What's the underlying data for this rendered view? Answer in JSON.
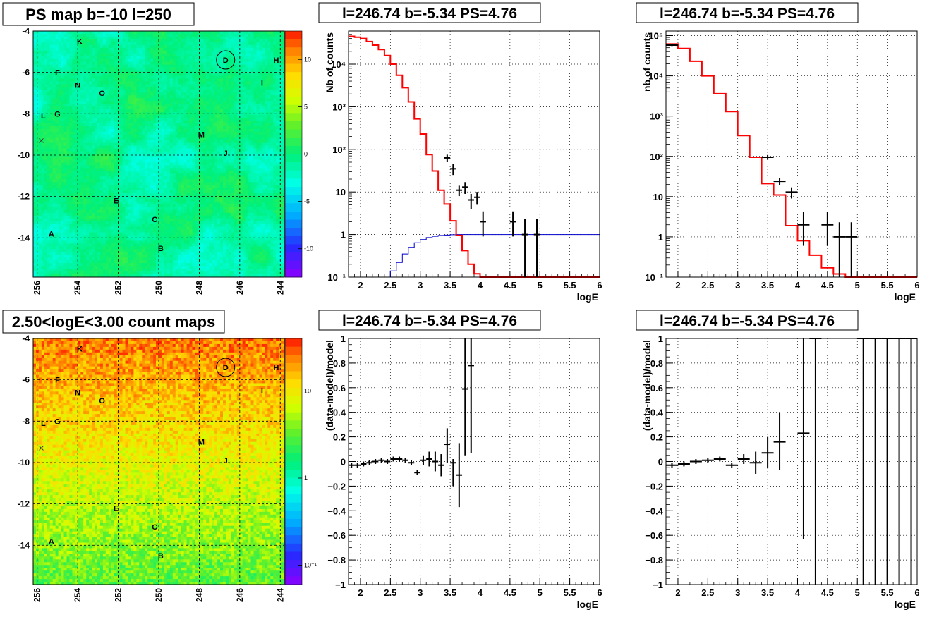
{
  "colors": {
    "model": "#ff0000",
    "background_model": "#0000cc",
    "data": "#000000",
    "grid": "#000000"
  },
  "chart_data": [
    {
      "id": "ps-map",
      "type": "heatmap",
      "title": "PS map b=-10 l=250",
      "x_ticks": [
        "256",
        "254",
        "252",
        "250",
        "248",
        "246",
        "244"
      ],
      "y_ticks": [
        "-4",
        "-6",
        "-8",
        "-10",
        "-12",
        "-14"
      ],
      "xlim": [
        256.2,
        243.8
      ],
      "ylim": [
        -15.9,
        -4.0
      ],
      "colorbar": {
        "scale": "linear",
        "range": [
          -13,
          13
        ],
        "ticks": [
          "10",
          "5",
          "0",
          "-5",
          "-10"
        ],
        "tick_values": [
          10,
          5,
          0,
          -5,
          -10
        ]
      },
      "color_style": "ps",
      "sources": [
        {
          "label": "K",
          "l": 253.9,
          "b": -4.5
        },
        {
          "label": "D",
          "l": 246.7,
          "b": -5.4
        },
        {
          "label": "H",
          "l": 244.2,
          "b": -5.4
        },
        {
          "label": "F",
          "l": 255.0,
          "b": -6.0
        },
        {
          "label": "I",
          "l": 244.9,
          "b": -6.5
        },
        {
          "label": "N",
          "l": 254.0,
          "b": -6.6
        },
        {
          "label": "O",
          "l": 252.8,
          "b": -7.0
        },
        {
          "label": "L",
          "l": 255.7,
          "b": -8.1
        },
        {
          "label": "G",
          "l": 255.0,
          "b": -8.0
        },
        {
          "label": "M",
          "l": 247.9,
          "b": -9.0
        },
        {
          "label": "J",
          "l": 246.7,
          "b": -9.9
        },
        {
          "label": "E",
          "l": 252.1,
          "b": -12.2
        },
        {
          "label": "C",
          "l": 250.2,
          "b": -13.1
        },
        {
          "label": "A",
          "l": 255.3,
          "b": -13.8
        },
        {
          "label": "B",
          "l": 249.9,
          "b": -14.5
        }
      ],
      "circle": {
        "l": 246.7,
        "b": -5.4
      },
      "cross": {
        "l": 255.8,
        "b": -9.3
      }
    },
    {
      "id": "spectrum-left",
      "type": "line",
      "title": "l=246.74 b=-5.34 PS=4.76",
      "xlabel": "logE",
      "ylabel": "Nb of counts",
      "xlim": [
        1.8,
        6.0
      ],
      "ylim": [
        0.1,
        60000
      ],
      "yscale": "log",
      "x_ticks": [
        "2",
        "2.5",
        "3",
        "3.5",
        "4",
        "4.5",
        "5",
        "5.5",
        "6"
      ],
      "x_tick_values": [
        2,
        2.5,
        3,
        3.5,
        4,
        4.5,
        5,
        5.5,
        6
      ],
      "y_ticks": [
        "10⁻¹",
        "1",
        "10",
        "10²",
        "10³",
        "10⁴"
      ],
      "y_tick_values": [
        0.1,
        1,
        10,
        100,
        1000,
        10000
      ],
      "model_step": {
        "edges": [
          1.8,
          1.9,
          2.0,
          2.1,
          2.2,
          2.3,
          2.4,
          2.5,
          2.6,
          2.7,
          2.8,
          2.9,
          3.0,
          3.1,
          3.2,
          3.3,
          3.4,
          3.5,
          3.6,
          3.7,
          3.8,
          3.9,
          4.0,
          4.1,
          4.2,
          4.3,
          4.4,
          4.5,
          4.6,
          4.7,
          4.8,
          4.9,
          5.0,
          6.0
        ],
        "values": [
          45000,
          43000,
          40000,
          34000,
          28000,
          22000,
          16000,
          10000,
          5500,
          2800,
          1300,
          520,
          230,
          75,
          31,
          11,
          5.2,
          2.1,
          0.95,
          0.42,
          0.2,
          0.12,
          0.1,
          0.1,
          0.1,
          0.1,
          0.1,
          0.1,
          0.1,
          0.1,
          0.1,
          0.1,
          0.1
        ]
      },
      "background_step": {
        "edges": [
          1.8,
          2.5,
          2.6,
          2.7,
          2.8,
          2.9,
          3.0,
          3.1,
          3.2,
          3.3,
          3.4,
          3.5,
          3.6,
          3.7,
          3.8,
          3.9,
          4.0,
          6.0
        ],
        "values": [
          0.1,
          0.14,
          0.22,
          0.35,
          0.5,
          0.64,
          0.76,
          0.85,
          0.91,
          0.95,
          0.97,
          0.99,
          1.0,
          1.0,
          1.0,
          1.0,
          1.0
        ]
      },
      "points": [
        {
          "x": 3.45,
          "y": 63,
          "dx": 0.05,
          "ylo": 50,
          "yhi": 75
        },
        {
          "x": 3.55,
          "y": 35,
          "dx": 0.05,
          "ylo": 25,
          "yhi": 45
        },
        {
          "x": 3.65,
          "y": 11,
          "dx": 0.05,
          "ylo": 8,
          "yhi": 14
        },
        {
          "x": 3.75,
          "y": 13,
          "dx": 0.05,
          "ylo": 9,
          "yhi": 17
        },
        {
          "x": 3.85,
          "y": 6.5,
          "dx": 0.05,
          "ylo": 4,
          "yhi": 9
        },
        {
          "x": 3.95,
          "y": 7.5,
          "dx": 0.05,
          "ylo": 5,
          "yhi": 10
        },
        {
          "x": 4.05,
          "y": 2,
          "dx": 0.05,
          "ylo": 0.9,
          "yhi": 3.5
        },
        {
          "x": 4.55,
          "y": 2,
          "dx": 0.05,
          "ylo": 0.9,
          "yhi": 3.5
        },
        {
          "x": 4.75,
          "y": 1,
          "dx": 0.05,
          "ylo": 0.1,
          "yhi": 2.3
        },
        {
          "x": 4.95,
          "y": 1,
          "dx": 0.05,
          "ylo": 0.1,
          "yhi": 2.3
        }
      ]
    },
    {
      "id": "spectrum-right",
      "type": "line",
      "title": "l=246.74 b=-5.34 PS=4.76",
      "xlabel": "logE",
      "ylabel": "nb of counts",
      "xlim": [
        1.8,
        6.0
      ],
      "ylim": [
        0.1,
        130000
      ],
      "yscale": "log",
      "x_ticks": [
        "2",
        "2.5",
        "3",
        "3.5",
        "4",
        "4.5",
        "5",
        "5.5",
        "6"
      ],
      "x_tick_values": [
        2,
        2.5,
        3,
        3.5,
        4,
        4.5,
        5,
        5.5,
        6
      ],
      "y_ticks": [
        "10⁻¹",
        "1",
        "10",
        "10²",
        "10³",
        "10⁴",
        "10⁵"
      ],
      "y_tick_values": [
        0.1,
        1,
        10,
        100,
        1000,
        10000,
        100000
      ],
      "model_step": {
        "edges": [
          1.8,
          2.0,
          2.2,
          2.4,
          2.6,
          2.8,
          3.0,
          3.2,
          3.4,
          3.6,
          3.8,
          4.0,
          4.2,
          4.4,
          4.6,
          4.8,
          6.0
        ],
        "values": [
          62000,
          48000,
          23000,
          10000,
          3600,
          1300,
          330,
          95,
          21,
          11,
          1.9,
          0.8,
          0.35,
          0.17,
          0.12,
          0.1
        ]
      },
      "points": [
        {
          "x": 1.9,
          "y": 58000,
          "dx": 0.1,
          "ylo": 55000,
          "yhi": 61000
        },
        {
          "x": 3.5,
          "y": 95,
          "dx": 0.1,
          "ylo": 82,
          "yhi": 108
        },
        {
          "x": 3.7,
          "y": 24,
          "dx": 0.1,
          "ylo": 19,
          "yhi": 29
        },
        {
          "x": 3.9,
          "y": 13,
          "dx": 0.1,
          "ylo": 9,
          "yhi": 17
        },
        {
          "x": 4.1,
          "y": 2,
          "dx": 0.1,
          "ylo": 0.6,
          "yhi": 4.2
        },
        {
          "x": 4.5,
          "y": 2,
          "dx": 0.1,
          "ylo": 0.6,
          "yhi": 4.2
        },
        {
          "x": 4.7,
          "y": 1,
          "dx": 0.1,
          "ylo": 0.1,
          "yhi": 2.3
        },
        {
          "x": 4.9,
          "y": 1,
          "dx": 0.1,
          "ylo": 0.1,
          "yhi": 2.3
        }
      ]
    },
    {
      "id": "count-map",
      "type": "heatmap",
      "title": "2.50<logE<3.00 count maps",
      "x_ticks": [
        "256",
        "254",
        "252",
        "250",
        "248",
        "246",
        "244"
      ],
      "y_ticks": [
        "-4",
        "-6",
        "-8",
        "-10",
        "-12",
        "-14"
      ],
      "xlim": [
        256.2,
        243.8
      ],
      "ylim": [
        -15.9,
        -4.0
      ],
      "colorbar": {
        "scale": "log",
        "range": [
          0.06,
          40
        ],
        "ticks": [
          "10",
          "1",
          "10⁻¹"
        ],
        "tick_values": [
          10,
          1,
          0.1
        ]
      },
      "color_style": "counts",
      "sources": [
        {
          "label": "K",
          "l": 253.9,
          "b": -4.5
        },
        {
          "label": "D",
          "l": 246.7,
          "b": -5.4
        },
        {
          "label": "H",
          "l": 244.2,
          "b": -5.4
        },
        {
          "label": "F",
          "l": 255.0,
          "b": -6.0
        },
        {
          "label": "I",
          "l": 244.9,
          "b": -6.5
        },
        {
          "label": "N",
          "l": 254.0,
          "b": -6.6
        },
        {
          "label": "O",
          "l": 252.8,
          "b": -7.0
        },
        {
          "label": "L",
          "l": 255.7,
          "b": -8.1
        },
        {
          "label": "G",
          "l": 255.0,
          "b": -8.0
        },
        {
          "label": "M",
          "l": 247.9,
          "b": -9.0
        },
        {
          "label": "J",
          "l": 246.7,
          "b": -9.9
        },
        {
          "label": "E",
          "l": 252.1,
          "b": -12.2
        },
        {
          "label": "C",
          "l": 250.2,
          "b": -13.1
        },
        {
          "label": "A",
          "l": 255.3,
          "b": -13.8
        },
        {
          "label": "B",
          "l": 249.9,
          "b": -14.5
        }
      ],
      "circle": {
        "l": 246.7,
        "b": -5.4
      },
      "cross": {
        "l": 255.8,
        "b": -9.3
      }
    },
    {
      "id": "residual-left",
      "type": "scatter",
      "title": "l=246.74 b=-5.34 PS=4.76",
      "xlabel": "logE",
      "ylabel": "(data-model)/model",
      "xlim": [
        1.8,
        6.0
      ],
      "ylim": [
        -1,
        1
      ],
      "x_ticks": [
        "2",
        "2.5",
        "3",
        "3.5",
        "4",
        "4.5",
        "5",
        "5.5",
        "6"
      ],
      "x_tick_values": [
        2,
        2.5,
        3,
        3.5,
        4,
        4.5,
        5,
        5.5,
        6
      ],
      "y_ticks": [
        "1",
        "0.8",
        "0.6",
        "0.4",
        "0.2",
        "0",
        "−0.2",
        "−0.4",
        "−0.6",
        "−0.8",
        "−1"
      ],
      "y_tick_values": [
        1,
        0.8,
        0.6,
        0.4,
        0.2,
        0,
        -0.2,
        -0.4,
        -0.6,
        -0.8,
        -1
      ],
      "points": [
        {
          "x": 1.85,
          "y": -0.03,
          "dx": 0.05,
          "ylo": -0.05,
          "yhi": -0.01
        },
        {
          "x": 1.95,
          "y": -0.03,
          "dx": 0.05,
          "ylo": -0.05,
          "yhi": -0.01
        },
        {
          "x": 2.05,
          "y": -0.02,
          "dx": 0.05,
          "ylo": -0.04,
          "yhi": 0.0
        },
        {
          "x": 2.15,
          "y": -0.01,
          "dx": 0.05,
          "ylo": -0.03,
          "yhi": 0.01
        },
        {
          "x": 2.25,
          "y": 0.0,
          "dx": 0.05,
          "ylo": -0.02,
          "yhi": 0.02
        },
        {
          "x": 2.35,
          "y": 0.01,
          "dx": 0.05,
          "ylo": -0.01,
          "yhi": 0.03
        },
        {
          "x": 2.45,
          "y": 0.0,
          "dx": 0.05,
          "ylo": -0.02,
          "yhi": 0.02
        },
        {
          "x": 2.55,
          "y": 0.02,
          "dx": 0.05,
          "ylo": 0.0,
          "yhi": 0.04
        },
        {
          "x": 2.65,
          "y": 0.02,
          "dx": 0.05,
          "ylo": 0.0,
          "yhi": 0.04
        },
        {
          "x": 2.75,
          "y": 0.01,
          "dx": 0.05,
          "ylo": -0.01,
          "yhi": 0.03
        },
        {
          "x": 2.85,
          "y": -0.01,
          "dx": 0.05,
          "ylo": -0.03,
          "yhi": 0.01
        },
        {
          "x": 2.95,
          "y": -0.09,
          "dx": 0.05,
          "ylo": -0.11,
          "yhi": -0.07
        },
        {
          "x": 3.05,
          "y": 0.01,
          "dx": 0.05,
          "ylo": -0.03,
          "yhi": 0.05
        },
        {
          "x": 3.15,
          "y": 0.02,
          "dx": 0.05,
          "ylo": -0.04,
          "yhi": 0.08
        },
        {
          "x": 3.25,
          "y": 0.0,
          "dx": 0.05,
          "ylo": -0.08,
          "yhi": 0.08
        },
        {
          "x": 3.35,
          "y": -0.03,
          "dx": 0.05,
          "ylo": -0.12,
          "yhi": 0.06
        },
        {
          "x": 3.45,
          "y": 0.14,
          "dx": 0.05,
          "ylo": -0.01,
          "yhi": 0.27
        },
        {
          "x": 3.55,
          "y": -0.01,
          "dx": 0.05,
          "ylo": -0.2,
          "yhi": 0.02
        },
        {
          "x": 3.65,
          "y": -0.11,
          "dx": 0.05,
          "ylo": -0.37,
          "yhi": 0.15
        },
        {
          "x": 3.75,
          "y": 0.59,
          "dx": 0.05,
          "ylo": 0.05,
          "yhi": 1.0
        },
        {
          "x": 3.85,
          "y": 0.78,
          "dx": 0.05,
          "ylo": 0.07,
          "yhi": 1.0
        }
      ]
    },
    {
      "id": "residual-right",
      "type": "scatter",
      "title": "l=246.74 b=-5.34 PS=4.76",
      "xlabel": "logE",
      "ylabel": "(data-model)/model",
      "xlim": [
        1.8,
        6.0
      ],
      "ylim": [
        -1,
        1
      ],
      "x_ticks": [
        "2",
        "2.5",
        "3",
        "3.5",
        "4",
        "4.5",
        "5",
        "5.5",
        "6"
      ],
      "x_tick_values": [
        2,
        2.5,
        3,
        3.5,
        4,
        4.5,
        5,
        5.5,
        6
      ],
      "y_ticks": [
        "1",
        "0.8",
        "0.6",
        "0.4",
        "0.2",
        "0",
        "−0.2",
        "−0.4",
        "−0.6",
        "−0.8",
        "−1"
      ],
      "y_tick_values": [
        1,
        0.8,
        0.6,
        0.4,
        0.2,
        0,
        -0.2,
        -0.4,
        -0.6,
        -0.8,
        -1
      ],
      "points": [
        {
          "x": 1.9,
          "y": -0.03,
          "dx": 0.1,
          "ylo": -0.05,
          "yhi": -0.01
        },
        {
          "x": 2.1,
          "y": -0.02,
          "dx": 0.1,
          "ylo": -0.04,
          "yhi": 0.0
        },
        {
          "x": 2.3,
          "y": 0.0,
          "dx": 0.1,
          "ylo": -0.02,
          "yhi": 0.02
        },
        {
          "x": 2.5,
          "y": 0.01,
          "dx": 0.1,
          "ylo": -0.01,
          "yhi": 0.03
        },
        {
          "x": 2.7,
          "y": 0.02,
          "dx": 0.1,
          "ylo": 0.0,
          "yhi": 0.04
        },
        {
          "x": 2.9,
          "y": -0.03,
          "dx": 0.1,
          "ylo": -0.05,
          "yhi": -0.01
        },
        {
          "x": 3.1,
          "y": 0.02,
          "dx": 0.1,
          "ylo": -0.02,
          "yhi": 0.06
        },
        {
          "x": 3.3,
          "y": -0.01,
          "dx": 0.1,
          "ylo": -0.1,
          "yhi": 0.08
        },
        {
          "x": 3.5,
          "y": 0.07,
          "dx": 0.1,
          "ylo": -0.05,
          "yhi": 0.2
        },
        {
          "x": 3.7,
          "y": 0.16,
          "dx": 0.1,
          "ylo": -0.07,
          "yhi": 0.4
        },
        {
          "x": 4.1,
          "y": 0.23,
          "dx": 0.1,
          "ylo": -0.63,
          "yhi": 1.0
        },
        {
          "x": 4.3,
          "y": 1.0,
          "dx": 0.1,
          "ylo": -1.0,
          "yhi": 1.0
        },
        {
          "x": 5.1,
          "y": 1.0,
          "dx": 0.1,
          "ylo": -1.0,
          "yhi": 1.0
        },
        {
          "x": 5.3,
          "y": 1.0,
          "dx": 0.1,
          "ylo": -1.0,
          "yhi": 1.0
        },
        {
          "x": 5.5,
          "y": 1.0,
          "dx": 0.1,
          "ylo": -1.0,
          "yhi": 1.0
        },
        {
          "x": 5.7,
          "y": 1.0,
          "dx": 0.1,
          "ylo": -1.0,
          "yhi": 1.0
        },
        {
          "x": 5.9,
          "y": 1.0,
          "dx": 0.1,
          "ylo": -1.0,
          "yhi": 1.0
        }
      ]
    }
  ]
}
